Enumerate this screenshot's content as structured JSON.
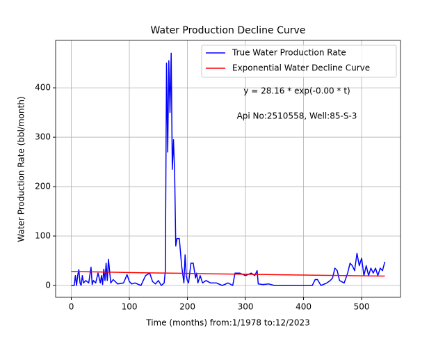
{
  "chart_data": {
    "type": "line",
    "title": "Water Production Decline Curve",
    "xlabel": "Time (months) from:1/1978 to:12/2023",
    "ylabel": "Water Production Rate (bbl/month)",
    "annotations": [
      "y = 28.16 * exp(-0.00 * t)",
      "Api No:2510558, Well:85-S-3"
    ],
    "xlim": [
      -27,
      567
    ],
    "ylim": [
      -24,
      496
    ],
    "xticks": [
      0,
      100,
      200,
      300,
      400,
      500
    ],
    "yticks": [
      0,
      100,
      200,
      300,
      400
    ],
    "grid": true,
    "legend": "upper right",
    "series": [
      {
        "name": "True Water Production Rate",
        "color": "#0000ff",
        "x": [
          0,
          5,
          7,
          9,
          11,
          13,
          15,
          17,
          19,
          21,
          25,
          30,
          34,
          36,
          38,
          42,
          46,
          50,
          52,
          54,
          56,
          58,
          60,
          62,
          64,
          68,
          72,
          80,
          90,
          96,
          100,
          104,
          110,
          120,
          128,
          135,
          140,
          145,
          150,
          155,
          160,
          162,
          164,
          166,
          168,
          170,
          172,
          174,
          176,
          178,
          180,
          182,
          186,
          190,
          194,
          196,
          198,
          200,
          202,
          206,
          210,
          214,
          216,
          218,
          222,
          226,
          232,
          240,
          250,
          260,
          270,
          278,
          282,
          290,
          300,
          310,
          316,
          320,
          322,
          330,
          340,
          350,
          360,
          380,
          400,
          415,
          420,
          424,
          430,
          440,
          446,
          450,
          454,
          458,
          462,
          470,
          476,
          480,
          484,
          488,
          492,
          496,
          500,
          504,
          508,
          512,
          516,
          520,
          524,
          528,
          532,
          536,
          540
        ],
        "values": [
          0,
          0,
          20,
          0,
          20,
          32,
          5,
          0,
          20,
          5,
          10,
          5,
          37,
          2,
          10,
          5,
          25,
          5,
          20,
          2,
          33,
          10,
          45,
          10,
          53,
          5,
          12,
          3,
          5,
          22,
          8,
          3,
          5,
          0,
          20,
          25,
          8,
          3,
          10,
          0,
          5,
          30,
          450,
          270,
          455,
          350,
          470,
          235,
          295,
          225,
          80,
          95,
          95,
          40,
          5,
          62,
          20,
          10,
          5,
          45,
          45,
          15,
          25,
          5,
          20,
          5,
          10,
          5,
          5,
          0,
          5,
          0,
          25,
          25,
          20,
          25,
          20,
          30,
          3,
          2,
          3,
          0,
          0,
          0,
          0,
          0,
          12,
          12,
          0,
          5,
          10,
          15,
          35,
          30,
          10,
          5,
          25,
          45,
          40,
          30,
          65,
          40,
          55,
          20,
          40,
          20,
          35,
          25,
          35,
          20,
          35,
          30,
          48
        ]
      },
      {
        "name": "Exponential Water Decline Curve",
        "color": "#ff0000",
        "x": [
          0,
          60,
          120,
          180,
          240,
          300,
          360,
          420,
          480,
          540
        ],
        "values": [
          28.16,
          26.95,
          25.8,
          24.7,
          23.6,
          22.6,
          21.6,
          20.7,
          19.8,
          19.0
        ]
      }
    ]
  }
}
